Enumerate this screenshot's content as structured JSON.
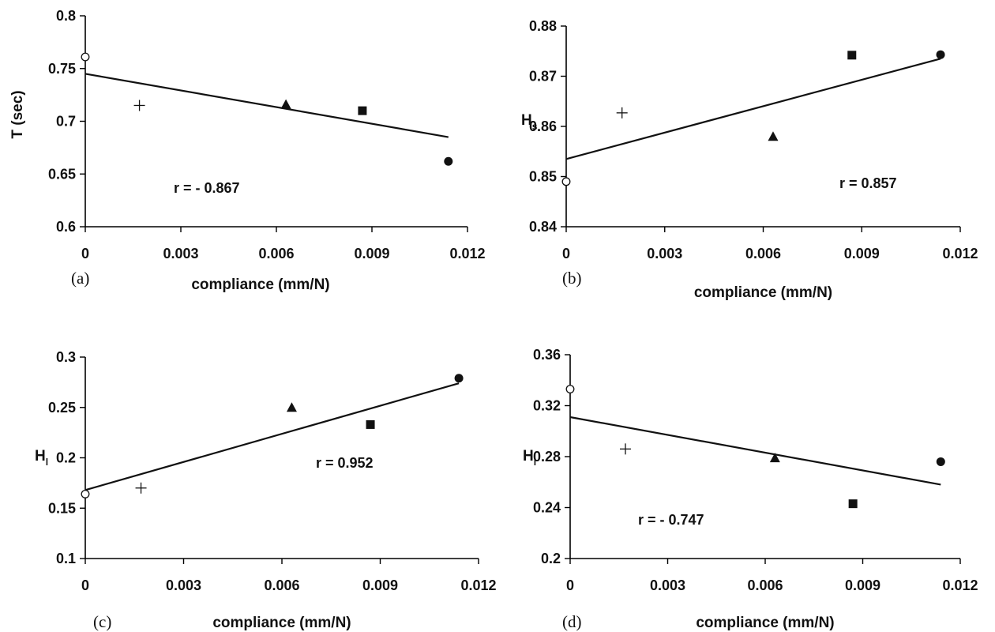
{
  "chart_data": [
    {
      "type": "scatter",
      "panel_label": "(a)",
      "xlabel": "compliance (mm/N)",
      "ylabel": "T (sec)",
      "ylabel_sub": "",
      "xlim": [
        0,
        0.012
      ],
      "ylim": [
        0.6,
        0.8
      ],
      "xticks": [
        "0",
        "0.003",
        "0.006",
        "0.009",
        "0.012"
      ],
      "yticks": [
        "0.6",
        "0.65",
        "0.7",
        "0.75",
        "0.8"
      ],
      "points": [
        {
          "x": 0.0,
          "y": 0.761,
          "marker": "open-circle"
        },
        {
          "x": 0.0017,
          "y": 0.715,
          "marker": "plus"
        },
        {
          "x": 0.0063,
          "y": 0.716,
          "marker": "triangle"
        },
        {
          "x": 0.0087,
          "y": 0.71,
          "marker": "square"
        },
        {
          "x": 0.0114,
          "y": 0.662,
          "marker": "filled-circle"
        }
      ],
      "fit": {
        "x": [
          0,
          0.0114
        ],
        "y": [
          0.745,
          0.685
        ]
      },
      "annotation": "r = - 0.867"
    },
    {
      "type": "scatter",
      "panel_label": "(b)",
      "xlabel": "compliance (mm/N)",
      "ylabel": "H",
      "ylabel_sub": "s",
      "xlim": [
        0,
        0.012
      ],
      "ylim": [
        0.84,
        0.88
      ],
      "xticks": [
        "0",
        "0.003",
        "0.006",
        "0.009",
        "0.012"
      ],
      "yticks": [
        "0.84",
        "0.85",
        "0.86",
        "0.87",
        "0.88"
      ],
      "points": [
        {
          "x": 0.0,
          "y": 0.849,
          "marker": "open-circle"
        },
        {
          "x": 0.0017,
          "y": 0.8627,
          "marker": "plus"
        },
        {
          "x": 0.0063,
          "y": 0.858,
          "marker": "triangle"
        },
        {
          "x": 0.0087,
          "y": 0.8742,
          "marker": "square"
        },
        {
          "x": 0.0114,
          "y": 0.8743,
          "marker": "filled-circle"
        }
      ],
      "fit": {
        "x": [
          0,
          0.0114
        ],
        "y": [
          0.8535,
          0.8735
        ]
      },
      "annotation": "r = 0.857"
    },
    {
      "type": "scatter",
      "panel_label": "(c)",
      "xlabel": "compliance (mm/N)",
      "ylabel": "H",
      "ylabel_sub": "l",
      "xlim": [
        0,
        0.012
      ],
      "ylim": [
        0.1,
        0.3
      ],
      "xticks": [
        "0",
        "0.003",
        "0.006",
        "0.009",
        "0.012"
      ],
      "yticks": [
        "0.1",
        "0.15",
        "0.2",
        "0.25",
        "0.3"
      ],
      "points": [
        {
          "x": 0.0,
          "y": 0.164,
          "marker": "open-circle"
        },
        {
          "x": 0.0017,
          "y": 0.17,
          "marker": "plus"
        },
        {
          "x": 0.0063,
          "y": 0.25,
          "marker": "triangle"
        },
        {
          "x": 0.0087,
          "y": 0.233,
          "marker": "square"
        },
        {
          "x": 0.0114,
          "y": 0.279,
          "marker": "filled-circle"
        }
      ],
      "fit": {
        "x": [
          0,
          0.0114
        ],
        "y": [
          0.168,
          0.274
        ]
      },
      "annotation": "r = 0.952"
    },
    {
      "type": "scatter",
      "panel_label": "(d)",
      "xlabel": "compliance (mm/N)",
      "ylabel": "H",
      "ylabel_sub": "l",
      "xlim": [
        0,
        0.012
      ],
      "ylim": [
        0.2,
        0.36
      ],
      "xticks": [
        "0",
        "0.003",
        "0.006",
        "0.009",
        "0.012"
      ],
      "yticks": [
        "0.2",
        "0.24",
        "0.28",
        "0.32",
        "0.36"
      ],
      "points": [
        {
          "x": 0.0,
          "y": 0.333,
          "marker": "open-circle"
        },
        {
          "x": 0.0017,
          "y": 0.286,
          "marker": "plus"
        },
        {
          "x": 0.0063,
          "y": 0.279,
          "marker": "triangle"
        },
        {
          "x": 0.0087,
          "y": 0.243,
          "marker": "square"
        },
        {
          "x": 0.0114,
          "y": 0.276,
          "marker": "filled-circle"
        }
      ],
      "fit": {
        "x": [
          0,
          0.0114
        ],
        "y": [
          0.311,
          0.258
        ]
      },
      "annotation": "r = - 0.747"
    }
  ]
}
